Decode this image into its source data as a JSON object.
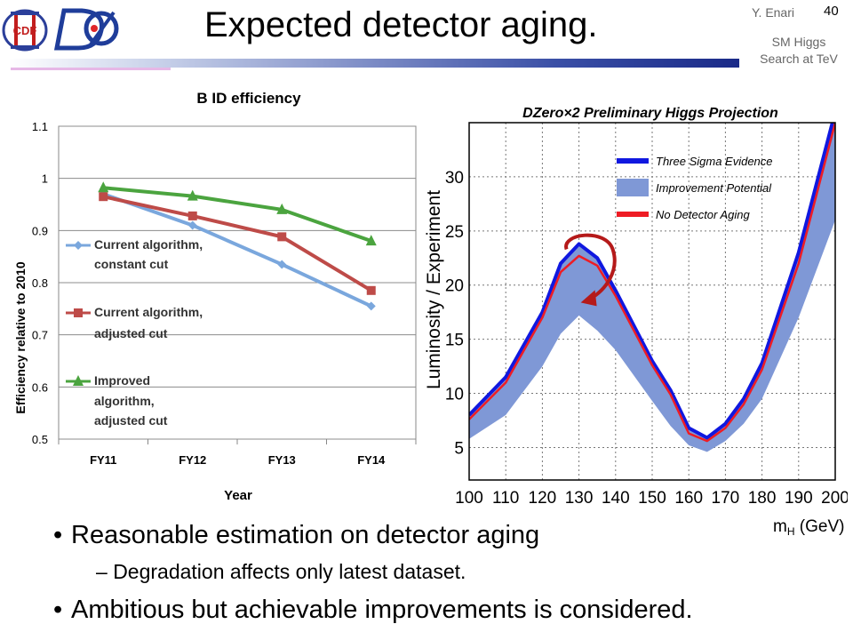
{
  "slide": {
    "title": "Expected detector aging.",
    "author": "Y. Enari",
    "page_number": "40",
    "talk_line1": "SM Higgs",
    "talk_line2": "Search at TeV",
    "logo_left_text": "CDF",
    "logo_right_text": "DØ"
  },
  "bullets": [
    {
      "level": 1,
      "text": "Reasonable estimation on detector aging"
    },
    {
      "level": 2,
      "text": "Degradation affects only latest dataset."
    },
    {
      "level": 1,
      "text": "Ambitious but achievable improvements is considered."
    }
  ],
  "chart_data": [
    {
      "type": "line",
      "title": "B ID efficiency",
      "xlabel": "Year",
      "ylabel": "Efficiency relative to 2010",
      "categories": [
        "FY11",
        "FY12",
        "FY13",
        "FY14"
      ],
      "ylim": [
        0.5,
        1.1
      ],
      "yticks": [
        "0.5",
        "0.6",
        "0.7",
        "0.8",
        "0.9",
        "1",
        "1.1"
      ],
      "grid": "horizontal",
      "legend_position": "left",
      "series": [
        {
          "name_line1": "Current algorithm,",
          "name_line2": "constant cut",
          "name_line3": "",
          "color": "#7aa7dd",
          "marker": "diamond",
          "values": [
            0.97,
            0.91,
            0.835,
            0.755
          ]
        },
        {
          "name_line1": "Current algorithm,",
          "name_line2": "adjusted cut",
          "name_line3": "",
          "color": "#be4b48",
          "marker": "square",
          "values": [
            0.965,
            0.928,
            0.888,
            0.785
          ]
        },
        {
          "name_line1": "Improved",
          "name_line2": "algorithm,",
          "name_line3": "adjusted cut",
          "color": "#4ba43f",
          "marker": "triangle",
          "values": [
            0.982,
            0.966,
            0.94,
            0.88
          ]
        }
      ]
    },
    {
      "type": "area",
      "title": "DZero×2 Preliminary Higgs Projection",
      "xlabel": "m_H (GeV)",
      "ylabel": "Luminosity / Experiment",
      "xlim": [
        100,
        200
      ],
      "ylim": [
        2,
        35
      ],
      "xticks": [
        "100",
        "110",
        "120",
        "130",
        "140",
        "150",
        "160",
        "170",
        "180",
        "190",
        "200"
      ],
      "yticks": [
        "5",
        "10",
        "15",
        "20",
        "25",
        "30"
      ],
      "grid": "dotted",
      "legend_position": "top-right",
      "colors": {
        "band": "#7f98d6",
        "blue": "#1018e0",
        "red": "#ee1c24",
        "arrow": "#b51a1a"
      },
      "legend": [
        {
          "label": "Three Sigma Evidence",
          "kind": "line",
          "color": "#1018e0"
        },
        {
          "label": "Improvement Potential",
          "kind": "band",
          "color": "#7f98d6"
        },
        {
          "label": "No Detector Aging",
          "kind": "line",
          "color": "#ee1c24"
        }
      ],
      "x": [
        100,
        110,
        120,
        125,
        130,
        135,
        140,
        150,
        155,
        160,
        165,
        170,
        175,
        180,
        190,
        200
      ],
      "three_sigma": [
        8,
        11.5,
        17.5,
        22,
        23.8,
        22.5,
        19.5,
        13,
        10.3,
        6.8,
        5.9,
        7.2,
        9.5,
        12.8,
        23,
        36
      ],
      "no_detector_aging": [
        7.6,
        11,
        17,
        21.2,
        22.7,
        21.8,
        19,
        12.6,
        9.9,
        6.3,
        5.6,
        6.8,
        9,
        12.2,
        22,
        35
      ],
      "improvement_lower": [
        5.8,
        8,
        12.5,
        15.5,
        17.2,
        15.8,
        14,
        9.3,
        7,
        5.2,
        4.6,
        5.6,
        7.2,
        9.5,
        17,
        26
      ],
      "improvement_upper": [
        8,
        11.5,
        17.5,
        22,
        23.8,
        22.5,
        19.5,
        13,
        10.3,
        6.8,
        5.9,
        7.2,
        9.5,
        12.8,
        23,
        36
      ]
    }
  ]
}
